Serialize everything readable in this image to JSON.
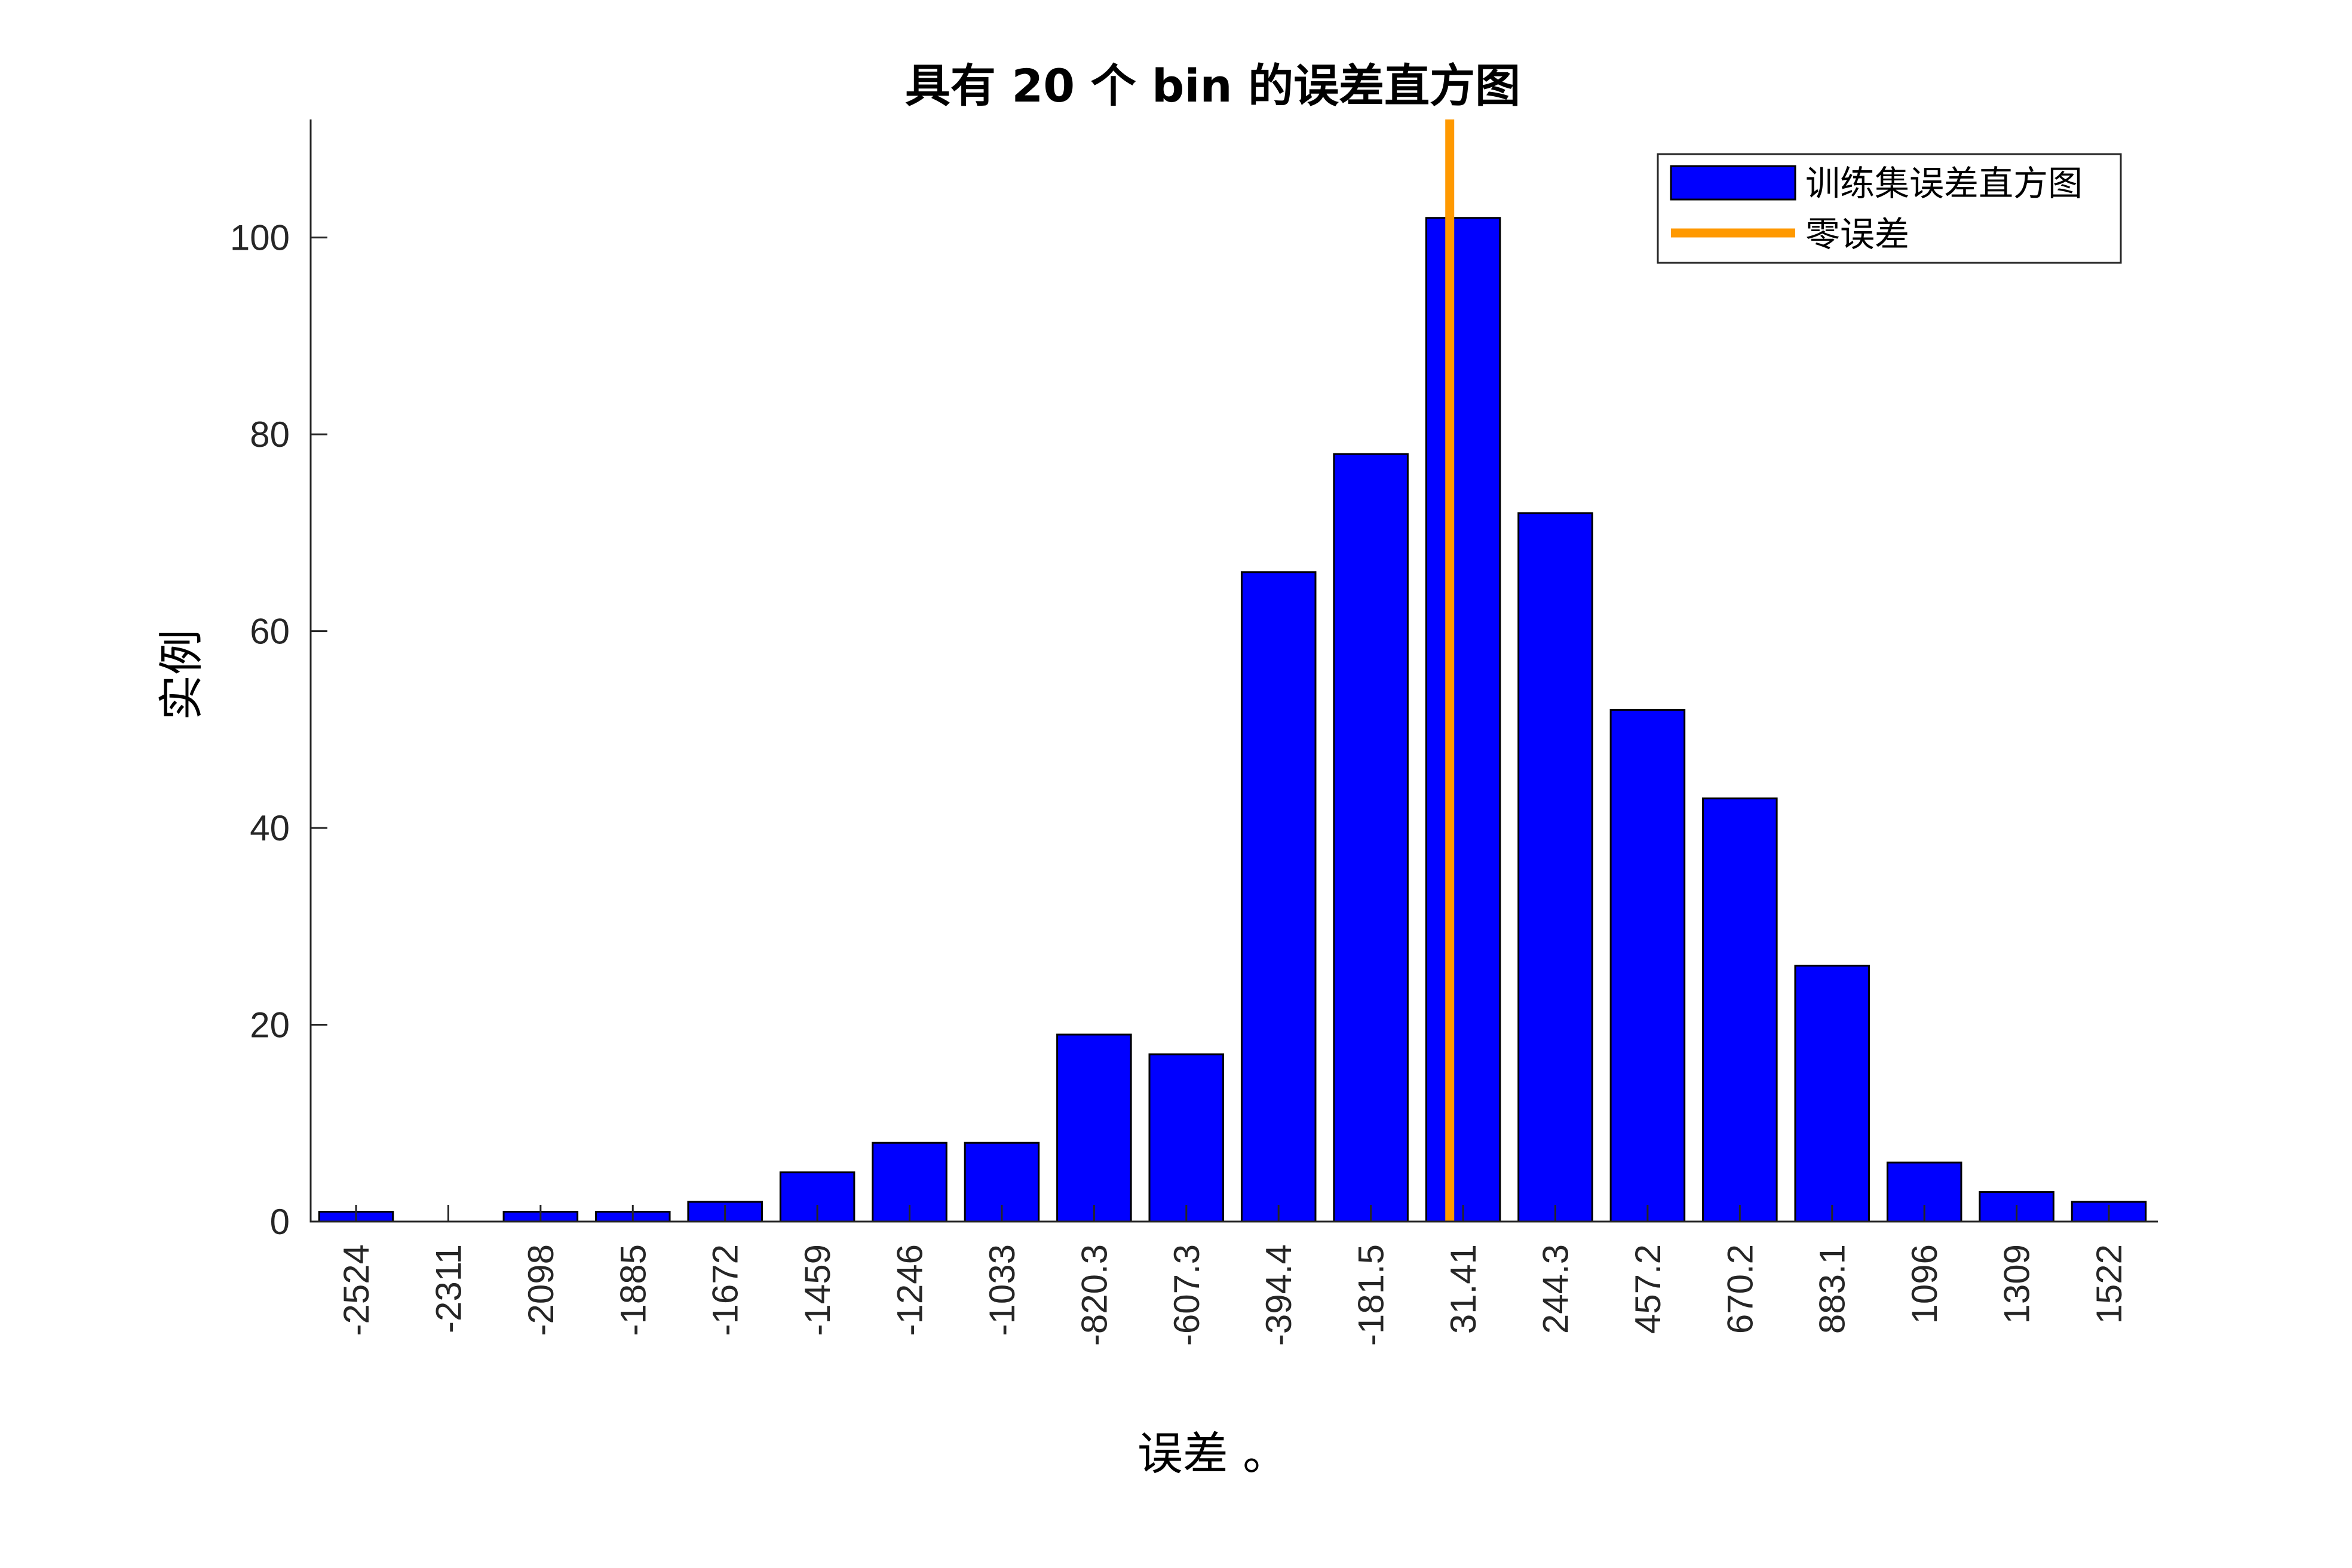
{
  "chart_data": {
    "type": "bar",
    "title": "具有 20 个 bin 的误差直方图",
    "xlabel": "误差 。",
    "ylabel": "实例",
    "categories": [
      "-2524",
      "-2311",
      "-2098",
      "-1885",
      "-1672",
      "-1459",
      "-1246",
      "-1033",
      "-820.3",
      "-607.3",
      "-394.4",
      "-181.5",
      "31.41",
      "244.3",
      "457.2",
      "670.2",
      "883.1",
      "1096",
      "1309",
      "1522"
    ],
    "series": [
      {
        "name": "训练集误差直方图",
        "values": [
          1,
          0,
          1,
          1,
          2,
          5,
          8,
          8,
          19,
          17,
          66,
          78,
          102,
          72,
          52,
          43,
          26,
          6,
          3,
          2
        ],
        "color": "#0000ff"
      }
    ],
    "reference_line": {
      "name": "零误差",
      "x": 0,
      "color": "#ff9900"
    },
    "bin_width": 212.9,
    "ylim": [
      0,
      112
    ],
    "yticks": [
      0,
      20,
      40,
      60,
      80,
      100
    ],
    "grid": false,
    "legend_position": "top-right"
  }
}
